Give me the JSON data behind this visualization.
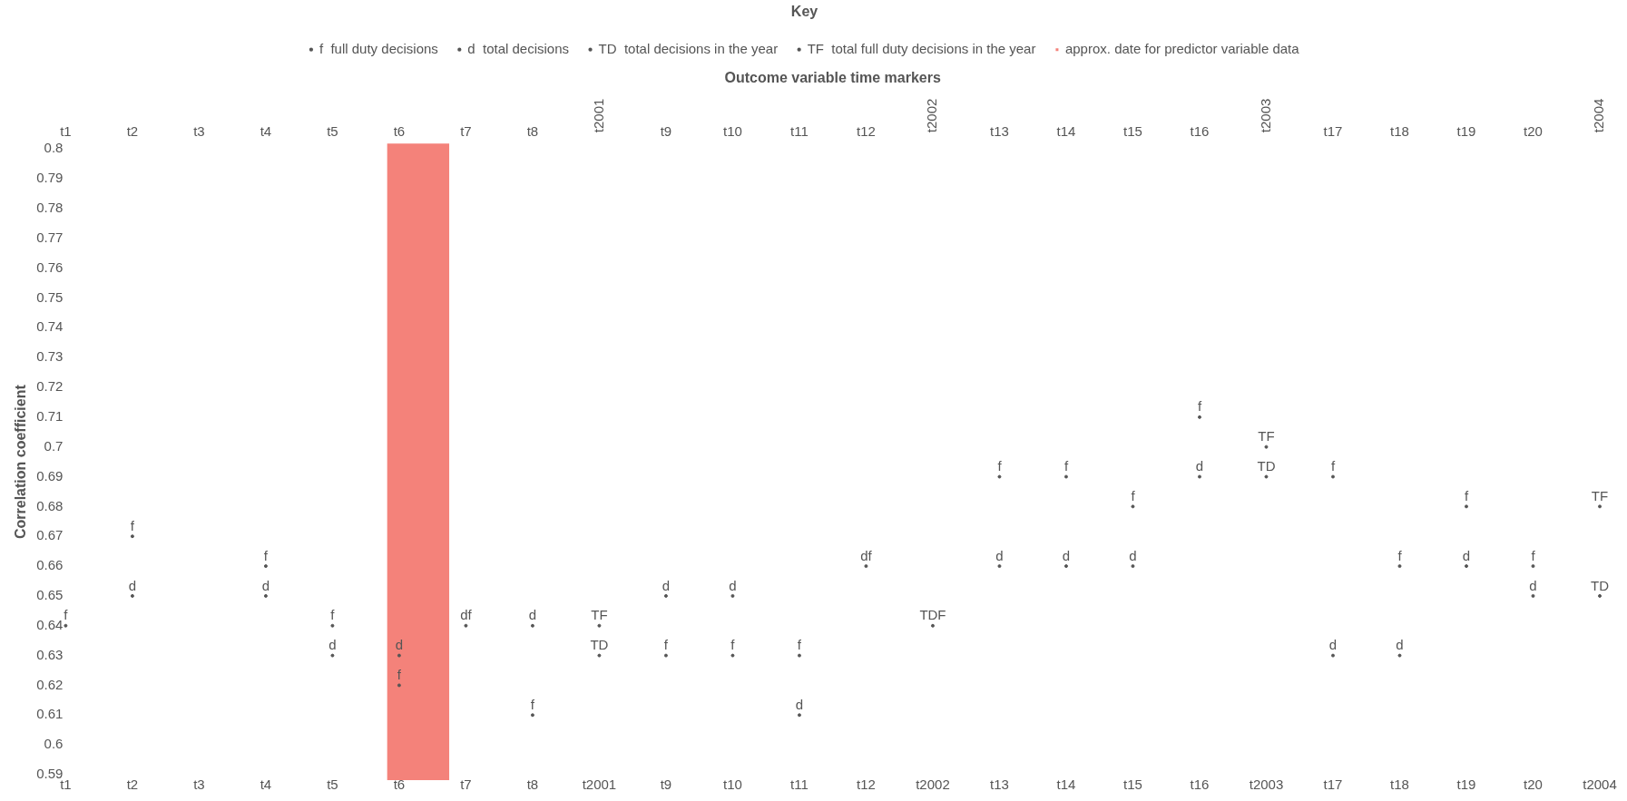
{
  "chart_data": {
    "type": "scatter",
    "xlabel": "Outcome variable time markers",
    "ylabel": "Correlation coefficient",
    "legend_title": "Key",
    "legend": "top",
    "categories": [
      "t1",
      "t2",
      "t3",
      "t4",
      "t5",
      "t6",
      "t7",
      "t8",
      "t2001",
      "t9",
      "t10",
      "t11",
      "t12",
      "t2002",
      "t13",
      "t14",
      "t15",
      "t16",
      "t2003",
      "t17",
      "t18",
      "t19",
      "t20",
      "t2004"
    ],
    "ylim": [
      0.59,
      0.8
    ],
    "yticks": [
      0.59,
      0.6,
      0.61,
      0.62,
      0.63,
      0.64,
      0.65,
      0.66,
      0.67,
      0.68,
      0.69,
      0.7,
      0.71,
      0.72,
      0.73,
      0.74,
      0.75,
      0.76,
      0.77,
      0.78,
      0.79,
      0.8
    ],
    "series": [
      {
        "name": "full duty decisions",
        "color": "#555555",
        "x": [
          "t1",
          "t2",
          "t4",
          "t5",
          "t6",
          "t8",
          "t9",
          "t10",
          "t11",
          "t13",
          "t14",
          "t15",
          "t16",
          "t17",
          "t18",
          "t19",
          "t20"
        ],
        "values": [
          0.64,
          0.67,
          0.66,
          0.64,
          0.62,
          0.61,
          0.63,
          0.63,
          0.63,
          0.69,
          0.69,
          0.68,
          0.71,
          0.69,
          0.66,
          0.68,
          0.66
        ],
        "value_labels": [
          "f",
          "f",
          "f",
          "f",
          "f",
          "f",
          "f",
          "f",
          "f",
          "f",
          "f",
          "f",
          "f",
          "f",
          "f",
          "f",
          "f"
        ]
      },
      {
        "name": "total decisions",
        "color": "#555555",
        "x": [
          "t2",
          "t4",
          "t5",
          "t6",
          "t8",
          "t9",
          "t10",
          "t11",
          "t13",
          "t14",
          "t15",
          "t16",
          "t17",
          "t18",
          "t19",
          "t20"
        ],
        "values": [
          0.65,
          0.65,
          0.63,
          0.63,
          0.64,
          0.65,
          0.65,
          0.61,
          0.66,
          0.66,
          0.66,
          0.69,
          0.63,
          0.63,
          0.66,
          0.65
        ],
        "value_labels": [
          "d",
          "d",
          "d",
          "d",
          "d",
          "d",
          "d",
          "d",
          "d",
          "d",
          "d",
          "d",
          "d",
          "d",
          "d",
          "d"
        ]
      },
      {
        "name": "total decisions in the year",
        "color": "#555555",
        "x": [
          "t2001",
          "t2003",
          "t2004"
        ],
        "values": [
          0.63,
          0.69,
          0.65
        ],
        "value_labels": [
          "TD",
          "TD",
          "TD"
        ]
      },
      {
        "name": "total full duty decisions in the year",
        "color": "#555555",
        "x": [
          "t2001",
          "t2003",
          "t2004"
        ],
        "values": [
          0.64,
          0.7,
          0.68
        ],
        "value_labels": [
          "TF",
          "TF",
          "TF"
        ]
      },
      {
        "color": "#555555",
        "x": [
          "t7",
          "t12",
          "t2002"
        ],
        "values": [
          0.64,
          0.66,
          0.64
        ],
        "value_labels": [
          "df",
          "df",
          "TDF"
        ]
      }
    ],
    "bands": [
      {
        "axis": "x",
        "from": "t6",
        "to": "t7",
        "label": "approx. date for predictor variable data",
        "color": "#f4827a"
      }
    ]
  }
}
